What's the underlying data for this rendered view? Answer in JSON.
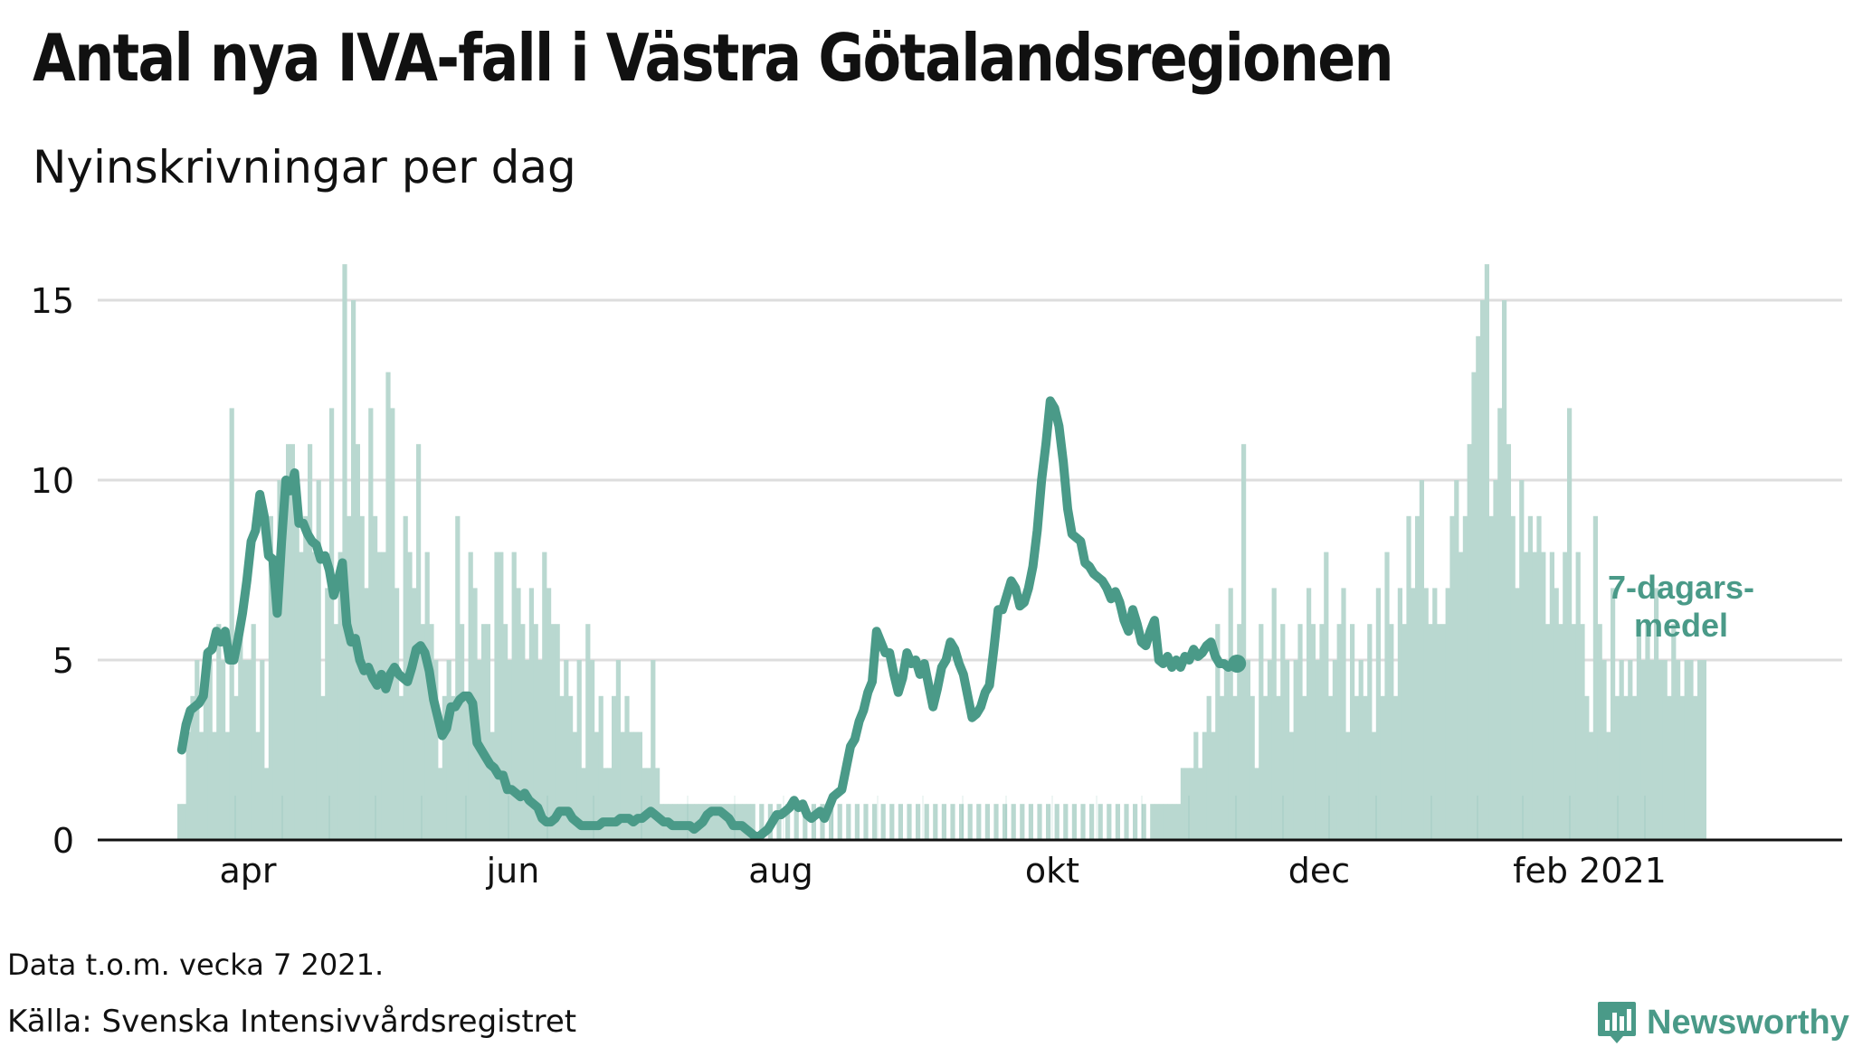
{
  "title": "Antal nya IVA-fall i Västra Götalandsregionen",
  "subtitle": "Nyinskrivningar per dag",
  "note": "Data t.o.m. vecka 7 2021.",
  "source": "Källa: Svenska Intensivvårdsregistret",
  "brand": "Newsworthy",
  "colors": {
    "bar": "#b9d8d0",
    "line": "#4a9a88",
    "grid": "#dddddd",
    "axis": "#111111"
  },
  "chart_data": {
    "type": "bar+line",
    "title": "Antal nya IVA-fall i Västra Götalandsregionen",
    "ylabel": "Nyinskrivningar per dag",
    "ylim": [
      0,
      16
    ],
    "yticks": [
      "0",
      "5",
      "10",
      "15"
    ],
    "xticks": [
      "apr",
      "jun",
      "aug",
      "okt",
      "dec",
      "feb 2021"
    ],
    "line_label": "7-dagars-medel",
    "line_label_lines": [
      "7-dagars-",
      "medel"
    ],
    "x_range": [
      "2020-03-09",
      "2021-02-20"
    ],
    "series": [
      {
        "name": "Nyinskrivningar per dag (approx.)",
        "type": "bar",
        "values": [
          1,
          1,
          3,
          4,
          5,
          3,
          4,
          5,
          3,
          6,
          5,
          3,
          12,
          4,
          6,
          5,
          5,
          6,
          3,
          5,
          2,
          9,
          7,
          10,
          9,
          11,
          11,
          10,
          8,
          9,
          11,
          8,
          10,
          4,
          7,
          12,
          6,
          8,
          16,
          9,
          15,
          11,
          9,
          7,
          12,
          9,
          8,
          8,
          13,
          12,
          7,
          4,
          9,
          8,
          7,
          11,
          6,
          8,
          6,
          5,
          2,
          4,
          5,
          4,
          9,
          6,
          4,
          8,
          7,
          5,
          6,
          6,
          3,
          8,
          8,
          6,
          5,
          8,
          7,
          6,
          5,
          7,
          6,
          5,
          8,
          7,
          6,
          6,
          4,
          5,
          4,
          3,
          5,
          2,
          6,
          5,
          3,
          4,
          2,
          2,
          4,
          5,
          3,
          4,
          3,
          3,
          3,
          2,
          2,
          5,
          2,
          1,
          1,
          1,
          1,
          1,
          1,
          1,
          1,
          1,
          1,
          1,
          1,
          1,
          1,
          1,
          1,
          1,
          1,
          1,
          1,
          1,
          1,
          0,
          1,
          0,
          1,
          0,
          1,
          0,
          1,
          0,
          1,
          0,
          1,
          0,
          1,
          0,
          1,
          0,
          1,
          0,
          1,
          0,
          1,
          0,
          1,
          0,
          1,
          0,
          1,
          0,
          1,
          0,
          1,
          0,
          1,
          0,
          1,
          0,
          1,
          0,
          1,
          0,
          1,
          0,
          1,
          0,
          1,
          0,
          1,
          0,
          1,
          0,
          1,
          0,
          1,
          0,
          1,
          0,
          1,
          0,
          1,
          0,
          1,
          0,
          1,
          0,
          1,
          0,
          1,
          0,
          1,
          0,
          1,
          0,
          1,
          0,
          1,
          0,
          1,
          0,
          1,
          0,
          1,
          0,
          1,
          0,
          1,
          0,
          1,
          0,
          1,
          0,
          1,
          1,
          1,
          1,
          1,
          1,
          1,
          2,
          2,
          2,
          3,
          2,
          3,
          4,
          3,
          6,
          4,
          5,
          7,
          4,
          6,
          11,
          5,
          4,
          2,
          6,
          4,
          5,
          7,
          4,
          6,
          5,
          3,
          5,
          6,
          4,
          7,
          6,
          5,
          6,
          8,
          4,
          5,
          6,
          7,
          3,
          6,
          4,
          5,
          4,
          6,
          3,
          7,
          4,
          8,
          6,
          4,
          7,
          6,
          9,
          7,
          9,
          10,
          7,
          6,
          7,
          6,
          6,
          7,
          9,
          10,
          8,
          9,
          11,
          13,
          14,
          15,
          16,
          9,
          10,
          12,
          15,
          11,
          9,
          7,
          10,
          8,
          9,
          8,
          9,
          8,
          6,
          8,
          7,
          6,
          8,
          12,
          6,
          8,
          6,
          4,
          3,
          9,
          6,
          5,
          3,
          7,
          4,
          5,
          4,
          5,
          4,
          6,
          5,
          6,
          5,
          7,
          5,
          5,
          4,
          6,
          5,
          4,
          5,
          5,
          4,
          5,
          5
        ]
      },
      {
        "name": "7-dagars-medel",
        "type": "line",
        "values": [
          2.5,
          3.2,
          3.6,
          3.7,
          3.8,
          4.0,
          5.2,
          5.3,
          5.8,
          5.5,
          5.8,
          5.0,
          5.0,
          5.6,
          6.3,
          7.2,
          8.3,
          8.6,
          9.6,
          9.0,
          7.9,
          7.8,
          6.3,
          8.3,
          10.0,
          9.7,
          10.2,
          8.8,
          8.8,
          8.5,
          8.3,
          8.2,
          7.8,
          7.9,
          7.5,
          6.8,
          7.2,
          7.7,
          6.0,
          5.5,
          5.6,
          5.0,
          4.7,
          4.8,
          4.5,
          4.3,
          4.6,
          4.2,
          4.6,
          4.8,
          4.6,
          4.5,
          4.4,
          4.8,
          5.3,
          5.4,
          5.2,
          4.7,
          3.9,
          3.4,
          2.9,
          3.1,
          3.7,
          3.7,
          3.9,
          4.0,
          4.0,
          3.8,
          2.7,
          2.5,
          2.3,
          2.1,
          2.0,
          1.8,
          1.8,
          1.4,
          1.4,
          1.3,
          1.2,
          1.3,
          1.1,
          1.0,
          0.9,
          0.6,
          0.5,
          0.5,
          0.6,
          0.8,
          0.8,
          0.8,
          0.6,
          0.5,
          0.4,
          0.4,
          0.4,
          0.4,
          0.4,
          0.5,
          0.5,
          0.5,
          0.5,
          0.6,
          0.6,
          0.6,
          0.5,
          0.6,
          0.6,
          0.7,
          0.8,
          0.7,
          0.6,
          0.5,
          0.5,
          0.4,
          0.4,
          0.4,
          0.4,
          0.4,
          0.3,
          0.4,
          0.5,
          0.7,
          0.8,
          0.8,
          0.8,
          0.7,
          0.6,
          0.4,
          0.4,
          0.4,
          0.3,
          0.2,
          0.1,
          0.1,
          0.2,
          0.3,
          0.5,
          0.7,
          0.7,
          0.8,
          0.9,
          1.1,
          0.9,
          1.0,
          0.7,
          0.6,
          0.7,
          0.8,
          0.6,
          0.9,
          1.2,
          1.3,
          1.4,
          2.0,
          2.6,
          2.8,
          3.3,
          3.6,
          4.1,
          4.4,
          5.8,
          5.5,
          5.2,
          5.2,
          4.6,
          4.1,
          4.5,
          5.2,
          4.9,
          5.0,
          4.6,
          4.9,
          4.3,
          3.7,
          4.2,
          4.8,
          5.0,
          5.5,
          5.3,
          4.9,
          4.6,
          4.0,
          3.4,
          3.5,
          3.7,
          4.1,
          4.3,
          5.3,
          6.4,
          6.4,
          6.8,
          7.2,
          7.0,
          6.5,
          6.6,
          7.0,
          7.6,
          8.6,
          10.0,
          11.0,
          12.2,
          12.0,
          11.5,
          10.5,
          9.2,
          8.5,
          8.4,
          8.3,
          7.7,
          7.6,
          7.4,
          7.3,
          7.2,
          7.0,
          6.7,
          6.9,
          6.6,
          6.1,
          5.8,
          6.4,
          6.0,
          5.5,
          5.4,
          5.8,
          6.1,
          5.0,
          4.9,
          5.1,
          4.8,
          5.0,
          4.8,
          5.1,
          5.0,
          5.3,
          5.1,
          5.2,
          5.4,
          5.5,
          5.1,
          4.9,
          4.9,
          4.8,
          4.9,
          4.9
        ]
      }
    ]
  }
}
